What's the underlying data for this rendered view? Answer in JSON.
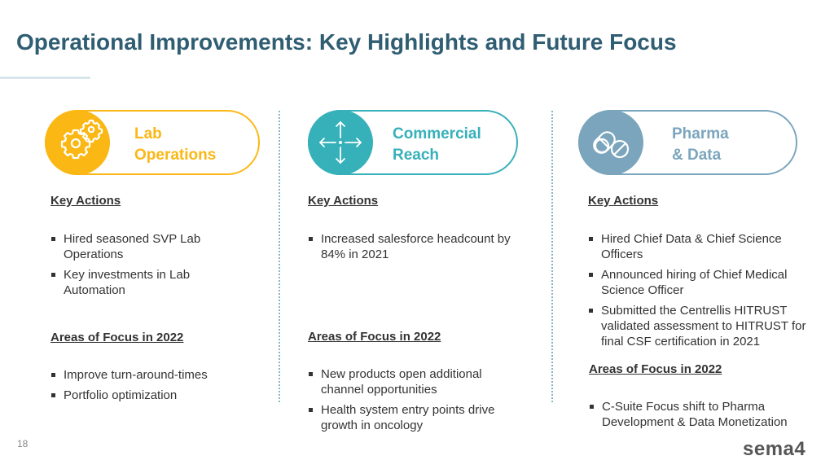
{
  "title": "Operational Improvements: Key Highlights and Future Focus",
  "page_number": "18",
  "logo_text": "sema4",
  "colors": {
    "title": "#2f5d72",
    "lab": "#fbb714",
    "commercial": "#36b0b9",
    "pharma": "#7aa5bc"
  },
  "columns": [
    {
      "icon": "gears-icon",
      "label_lines": [
        "Lab",
        "Operations"
      ],
      "key_actions_heading": "Key Actions",
      "key_actions": [
        "Hired seasoned SVP Lab Operations",
        "Key investments in Lab Automation"
      ],
      "focus_heading": "Areas of Focus in 2022",
      "focus_items": [
        "Improve turn-around-times",
        "Portfolio optimization"
      ]
    },
    {
      "icon": "arrows-outward-icon",
      "label_lines": [
        "Commercial",
        "Reach"
      ],
      "key_actions_heading": "Key Actions",
      "key_actions": [
        "Increased salesforce headcount by 84% in 2021"
      ],
      "focus_heading": "Areas of Focus in 2022",
      "focus_items": [
        "New products open additional channel opportunities",
        "Health system entry points drive growth in oncology"
      ]
    },
    {
      "icon": "pills-icon",
      "label_lines": [
        "Pharma",
        "& Data"
      ],
      "key_actions_heading": "Key Actions",
      "key_actions": [
        "Hired Chief Data & Chief Science Officers",
        "Announced hiring of Chief Medical Science Officer",
        "Submitted the Centrellis HITRUST validated assessment to HITRUST for final CSF certification in 2021"
      ],
      "focus_heading": "Areas of Focus in 2022",
      "focus_items": [
        "C-Suite Focus shift to Pharma Development & Data Monetization"
      ]
    }
  ]
}
